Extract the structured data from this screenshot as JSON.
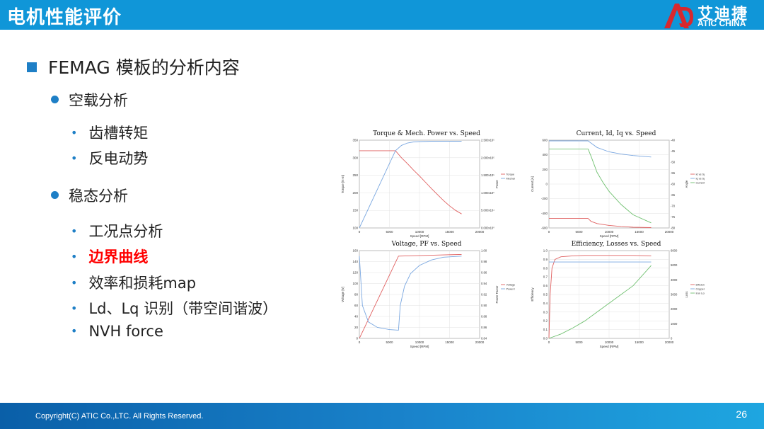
{
  "header": {
    "title": "电机性能评价",
    "logo_cn": "艾迪捷",
    "logo_en": "ATIC CHINA",
    "color": "#1096d8"
  },
  "heading": "FEMAG 模板的分析内容",
  "sections": [
    {
      "label": "空载分析",
      "items": [
        "齿槽转矩",
        "反电动势"
      ]
    },
    {
      "label": "稳态分析",
      "items": [
        "工况点分析",
        "边界曲线",
        "效率和损耗map",
        "Ld、Lq 识别（带空间谐波）",
        "NVH force"
      ]
    }
  ],
  "highlight_color": "#ff0000",
  "chart_data": [
    {
      "type": "line",
      "title": "Torque & Mech. Power vs. Speed",
      "xlabel": "Speed [RPM]",
      "ylabel": "Torque [N·m]",
      "y2label": "Power",
      "xlim": [
        0,
        20000
      ],
      "ylim": [
        100,
        350
      ],
      "x_ticks": [
        "0",
        "5000",
        "10000",
        "15000",
        "20000"
      ],
      "y_ticks": [
        "100",
        "150",
        "200",
        "250",
        "300",
        "350"
      ],
      "y2_ticks": [
        "0.000x10⁰",
        "5.000x10⁴",
        "1.000x10⁵",
        "1.500x10⁵",
        "2.000x10⁵",
        "2.500x10⁵"
      ],
      "series": [
        {
          "name": "Torque vs Speed",
          "color": "#e06060",
          "x": [
            0,
            6000,
            7000,
            8000,
            9000,
            10000,
            11000,
            12000,
            13000,
            14000,
            15000,
            16000,
            17000
          ],
          "y": [
            320,
            320,
            300,
            283,
            265,
            248,
            230,
            212,
            195,
            178,
            163,
            150,
            140
          ]
        },
        {
          "name": "Mechanical Power vs Speed",
          "color": "#7aa7e0",
          "x": [
            0,
            6000,
            7000,
            8000,
            9000,
            10000,
            12000,
            14000,
            17000
          ],
          "y": [
            100,
            320,
            335,
            342,
            345,
            346,
            347,
            347,
            347
          ]
        }
      ]
    },
    {
      "type": "line",
      "title": "Current, Id, Iq vs. Speed",
      "xlabel": "Speed [RPM]",
      "ylabel": "Current [A]",
      "y2label": "Angle",
      "xlim": [
        0,
        20000
      ],
      "ylim": [
        -600,
        600
      ],
      "x_ticks": [
        "0",
        "5000",
        "10000",
        "15000",
        "20000"
      ],
      "y_ticks": [
        "-600",
        "-400",
        "-200",
        "0",
        "200",
        "400",
        "600"
      ],
      "y2_ticks": [
        "-80",
        "-75",
        "-70",
        "-65",
        "-60",
        "-55",
        "-50",
        "-45",
        "-40"
      ],
      "series": [
        {
          "name": "Id vs Speed",
          "color": "#e06060",
          "x": [
            0,
            6500,
            7000,
            8000,
            10000,
            12000,
            14000,
            17000
          ],
          "y": [
            -470,
            -470,
            -510,
            -540,
            -565,
            -580,
            -590,
            -595
          ]
        },
        {
          "name": "Iq vs Speed",
          "color": "#7aa7e0",
          "x": [
            0,
            6500,
            7000,
            8000,
            10000,
            12000,
            14000,
            17000
          ],
          "y": [
            590,
            590,
            560,
            500,
            440,
            410,
            390,
            370
          ]
        },
        {
          "name": "Current Angle vs Speed",
          "color": "#70c070",
          "x": [
            0,
            6500,
            7000,
            8000,
            9000,
            10000,
            12000,
            14000,
            17000
          ],
          "y": [
            480,
            480,
            380,
            160,
            20,
            -100,
            -280,
            -420,
            -530
          ]
        }
      ]
    },
    {
      "type": "line",
      "title": "Voltage, PF vs. Speed",
      "xlabel": "Speed [RPM]",
      "ylabel": "Voltage [V]",
      "y2label": "Power Factor",
      "xlim": [
        0,
        20000
      ],
      "ylim": [
        0,
        160
      ],
      "x_ticks": [
        "0",
        "5000",
        "10000",
        "15000",
        "20000"
      ],
      "y_ticks": [
        "0",
        "20",
        "40",
        "60",
        "80",
        "100",
        "120",
        "140",
        "160"
      ],
      "y2_ticks": [
        "0.84",
        "0.86",
        "0.88",
        "0.90",
        "0.92",
        "0.94",
        "0.96",
        "0.98",
        "1.00"
      ],
      "series": [
        {
          "name": "Voltage vs Speed",
          "color": "#e06060",
          "x": [
            0,
            6500,
            17000
          ],
          "y": [
            0,
            150,
            153
          ]
        },
        {
          "name": "Power Factor vs Speed",
          "color": "#7aa7e0",
          "x": [
            0,
            500,
            1500,
            3000,
            5000,
            6500,
            6800,
            7500,
            8500,
            10000,
            12000,
            14000,
            17000
          ],
          "y": [
            150,
            60,
            30,
            20,
            16,
            15,
            60,
            95,
            118,
            133,
            143,
            148,
            150
          ]
        }
      ]
    },
    {
      "type": "line",
      "title": "Efficiency, Losses vs. Speed",
      "xlabel": "Speed [RPM]",
      "ylabel": "Efficiency",
      "y2label": "Loss",
      "xlim": [
        0,
        20000
      ],
      "ylim": [
        0.0,
        1.0
      ],
      "x_ticks": [
        "0",
        "5000",
        "10000",
        "15000",
        "20000"
      ],
      "y_ticks": [
        "0.0",
        "0.1",
        "0.2",
        "0.3",
        "0.4",
        "0.5",
        "0.6",
        "0.7",
        "0.8",
        "0.9",
        "1.0"
      ],
      "y2_ticks": [
        "0",
        "1000",
        "2000",
        "3000",
        "4000",
        "5000",
        "6000"
      ],
      "series": [
        {
          "name": "Efficiency vs Speed",
          "color": "#e06060",
          "x": [
            0,
            200,
            500,
            1000,
            2000,
            4000,
            6000,
            8000,
            10000,
            14000,
            17000
          ],
          "y": [
            0.0,
            0.5,
            0.8,
            0.9,
            0.93,
            0.94,
            0.945,
            0.945,
            0.945,
            0.945,
            0.94
          ]
        },
        {
          "name": "Copper Loss vs Speed",
          "color": "#7aa7e0",
          "x": [
            0,
            6500,
            17000
          ],
          "y": [
            0.87,
            0.87,
            0.87
          ]
        },
        {
          "name": "Iron Loss vs Speed",
          "color": "#70c070",
          "x": [
            0,
            2000,
            4000,
            6000,
            8000,
            10000,
            12000,
            14000,
            17000
          ],
          "y": [
            0.0,
            0.05,
            0.12,
            0.2,
            0.3,
            0.4,
            0.5,
            0.6,
            0.83
          ]
        }
      ]
    }
  ],
  "footer": {
    "copyright": "Copyright(C) ATIC Co.,LTC. All Rights Reserved.",
    "page": "26"
  }
}
